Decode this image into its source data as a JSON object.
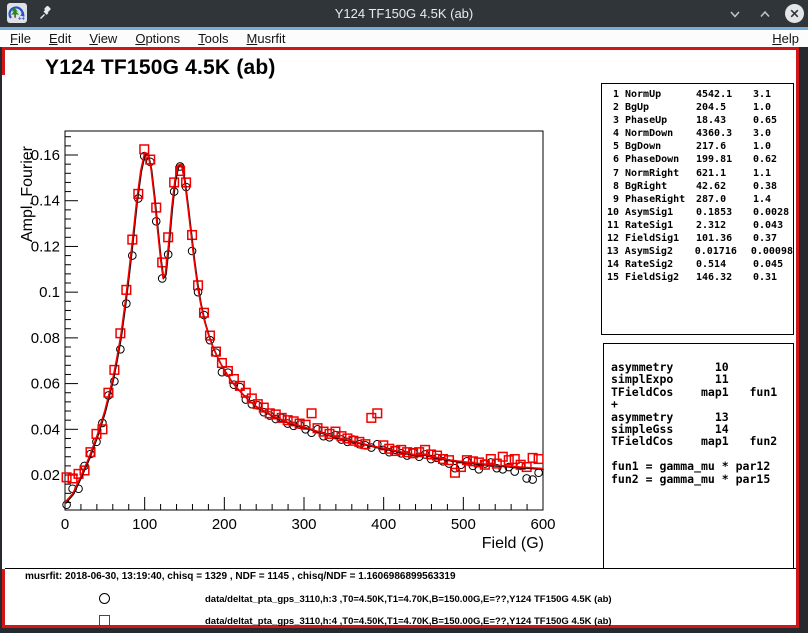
{
  "window": {
    "title": "Y124 TF150G 4.5K (ab)",
    "buttons": {
      "minimize": "v",
      "maximize": "^",
      "close": "x"
    }
  },
  "menu": {
    "items": [
      "File",
      "Edit",
      "View",
      "Options",
      "Tools",
      "Musrfit"
    ],
    "right_items": [
      "Help"
    ]
  },
  "plot": {
    "title": "Y124 TF150G 4.5K (ab)"
  },
  "param_table": {
    "rows": [
      {
        "num": "1",
        "name": "NormUp",
        "value": "4542.1",
        "error": "3.1"
      },
      {
        "num": "2",
        "name": "BgUp",
        "value": "204.5",
        "error": "1.0"
      },
      {
        "num": "3",
        "name": "PhaseUp",
        "value": "18.43",
        "error": "0.65"
      },
      {
        "num": "4",
        "name": "NormDown",
        "value": "4360.3",
        "error": "3.0"
      },
      {
        "num": "5",
        "name": "BgDown",
        "value": "217.6",
        "error": "1.0"
      },
      {
        "num": "6",
        "name": "PhaseDown",
        "value": "199.81",
        "error": "0.62"
      },
      {
        "num": "7",
        "name": "NormRight",
        "value": "621.1",
        "error": "1.1"
      },
      {
        "num": "8",
        "name": "BgRight",
        "value": "42.62",
        "error": "0.38"
      },
      {
        "num": "9",
        "name": "PhaseRight",
        "value": "287.0",
        "error": "1.4"
      },
      {
        "num": "10",
        "name": "AsymSig1",
        "value": "0.1853",
        "error": "0.0028"
      },
      {
        "num": "11",
        "name": "RateSig1",
        "value": "2.312",
        "error": "0.043"
      },
      {
        "num": "12",
        "name": "FieldSig1",
        "value": "101.36",
        "error": "0.37"
      },
      {
        "num": "13",
        "name": "AsymSig2",
        "value": "0.01716",
        "error": "0.00098"
      },
      {
        "num": "14",
        "name": "RateSig2",
        "value": "0.514",
        "error": "0.045"
      },
      {
        "num": "15",
        "name": "FieldSig2",
        "value": "146.32",
        "error": "0.31"
      }
    ]
  },
  "theory": {
    "lines": [
      "asymmetry      10",
      "simplExpo      11",
      "TFieldCos    map1   fun1",
      "+",
      "asymmetry      13",
      "simpleGss      14",
      "TFieldCos    map1   fun2",
      "",
      "fun1 = gamma_mu * par12",
      "fun2 = gamma_mu * par15"
    ]
  },
  "footer": {
    "status": "musrfit: 2018-06-30, 13:19:40, chisq = 1329 , NDF = 1145 , chisq/NDF = 1.1606986899563319",
    "legend": [
      {
        "marker": "circle",
        "color": "#000000",
        "label": "data/deltat_pta_gps_3110,h:3 ,T0=4.50K,T1=4.70K,B=150.00G,E=??,Y124 TF150G 4.5K (ab)"
      },
      {
        "marker": "square",
        "color": "#f20000",
        "label": "data/deltat_pta_gps_3110,h:4 ,T0=4.50K,T1=4.70K,B=150.00G,E=??,Y124 TF150G 4.5K (ab)"
      }
    ]
  },
  "colors": {
    "accent_red": "#f20000",
    "marker_black": "#000000",
    "canvas_border": "#d01616",
    "titlebar_bg": "#30353a",
    "focus_line": "#74add9"
  },
  "chart_data": {
    "type": "scatter",
    "title": "Y124 TF150G 4.5K (ab)",
    "xlabel": "Field (G)",
    "ylabel": "Ampl. Fourier",
    "xlim": [
      0,
      600
    ],
    "ylim": [
      0.0047,
      0.1705
    ],
    "x_major_ticks": [
      0,
      100,
      200,
      300,
      400,
      500,
      600
    ],
    "x_tick_labels": [
      "0",
      "100",
      "200",
      "300",
      "400",
      "500",
      "600"
    ],
    "x_minor_step": 20,
    "y_major_ticks": [
      0.02,
      0.04,
      0.06,
      0.08,
      0.1,
      0.12,
      0.14,
      0.16
    ],
    "y_tick_labels": [
      "0.02",
      "0.04",
      "0.06",
      "0.08",
      "0.1",
      "0.12",
      "0.14",
      "0.16"
    ],
    "y_minor_step": 0.004,
    "grid": false,
    "legend_position": "bottom-pad",
    "series": [
      {
        "name": "data h:3",
        "kind": "marker",
        "marker": "circle",
        "color": "#000000",
        "points": [
          [
            2,
            0.007
          ],
          [
            9.5,
            0.014
          ],
          [
            17,
            0.014
          ],
          [
            24.5,
            0.024
          ],
          [
            32,
            0.0292
          ],
          [
            39.5,
            0.0345
          ],
          [
            47,
            0.0428
          ],
          [
            54.5,
            0.0548
          ],
          [
            62,
            0.061
          ],
          [
            69.5,
            0.075
          ],
          [
            77,
            0.095
          ],
          [
            84.5,
            0.116
          ],
          [
            92,
            0.141
          ],
          [
            99.5,
            0.1595
          ],
          [
            107,
            0.157
          ],
          [
            114.5,
            0.131
          ],
          [
            122,
            0.106
          ],
          [
            129.5,
            0.1165
          ],
          [
            137,
            0.144
          ],
          [
            144.5,
            0.155
          ],
          [
            152,
            0.146
          ],
          [
            159.5,
            0.118
          ],
          [
            167,
            0.1
          ],
          [
            174.5,
            0.09
          ],
          [
            182,
            0.079
          ],
          [
            189.5,
            0.0735
          ],
          [
            197,
            0.065
          ],
          [
            204.5,
            0.0648
          ],
          [
            212,
            0.0595
          ],
          [
            219.5,
            0.0585
          ],
          [
            227,
            0.053
          ],
          [
            234.5,
            0.051
          ],
          [
            242,
            0.0505
          ],
          [
            249.5,
            0.0475
          ],
          [
            257,
            0.046
          ],
          [
            264.5,
            0.0445
          ],
          [
            272,
            0.045
          ],
          [
            279.5,
            0.0425
          ],
          [
            287,
            0.0415
          ],
          [
            294.5,
            0.042
          ],
          [
            302,
            0.04
          ],
          [
            309.5,
            0.0385
          ],
          [
            317,
            0.04
          ],
          [
            324.5,
            0.037
          ],
          [
            332,
            0.0365
          ],
          [
            339.5,
            0.0375
          ],
          [
            347,
            0.0355
          ],
          [
            354.5,
            0.0345
          ],
          [
            362,
            0.0355
          ],
          [
            369.5,
            0.0335
          ],
          [
            377,
            0.033
          ],
          [
            384.5,
            0.032
          ],
          [
            392,
            0.0335
          ],
          [
            399.5,
            0.031
          ],
          [
            407,
            0.03
          ],
          [
            414.5,
            0.031
          ],
          [
            422,
            0.0295
          ],
          [
            429.5,
            0.0285
          ],
          [
            437,
            0.03
          ],
          [
            444.5,
            0.028
          ],
          [
            452,
            0.029
          ],
          [
            459.5,
            0.027
          ],
          [
            467,
            0.0275
          ],
          [
            474.5,
            0.026
          ],
          [
            482,
            0.025
          ],
          [
            489.5,
            0.023
          ],
          [
            497,
            0.0245
          ],
          [
            504.5,
            0.026
          ],
          [
            512,
            0.024
          ],
          [
            519.5,
            0.0225
          ],
          [
            527,
            0.025
          ],
          [
            534.5,
            0.0255
          ],
          [
            542,
            0.023
          ],
          [
            549.5,
            0.0225
          ],
          [
            557,
            0.0235
          ],
          [
            564.5,
            0.0215
          ],
          [
            572,
            0.024
          ],
          [
            579.5,
            0.0185
          ],
          [
            587,
            0.018
          ],
          [
            594.5,
            0.021
          ]
        ]
      },
      {
        "name": "data h:4",
        "kind": "marker",
        "marker": "square",
        "color": "#f20000",
        "points": [
          [
            2,
            0.019
          ],
          [
            9.5,
            0.0185
          ],
          [
            17,
            0.0205
          ],
          [
            24.5,
            0.022
          ],
          [
            32,
            0.03
          ],
          [
            39.5,
            0.038
          ],
          [
            47,
            0.04
          ],
          [
            54.5,
            0.056
          ],
          [
            62,
            0.066
          ],
          [
            69.5,
            0.082
          ],
          [
            77,
            0.101
          ],
          [
            84.5,
            0.123
          ],
          [
            92,
            0.143
          ],
          [
            99.5,
            0.1625
          ],
          [
            107,
            0.158
          ],
          [
            114.5,
            0.137
          ],
          [
            122,
            0.113
          ],
          [
            129.5,
            0.124
          ],
          [
            137,
            0.148
          ],
          [
            144.5,
            0.153
          ],
          [
            152,
            0.148
          ],
          [
            159.5,
            0.125
          ],
          [
            167,
            0.103
          ],
          [
            174.5,
            0.091
          ],
          [
            182,
            0.081
          ],
          [
            189.5,
            0.074
          ],
          [
            197,
            0.069
          ],
          [
            204.5,
            0.0655
          ],
          [
            212,
            0.062
          ],
          [
            219.5,
            0.059
          ],
          [
            227,
            0.056
          ],
          [
            234.5,
            0.0535
          ],
          [
            242,
            0.051
          ],
          [
            249.5,
            0.0495
          ],
          [
            257,
            0.047
          ],
          [
            264.5,
            0.0465
          ],
          [
            272,
            0.045
          ],
          [
            279.5,
            0.044
          ],
          [
            287,
            0.0435
          ],
          [
            294.5,
            0.0425
          ],
          [
            302,
            0.042
          ],
          [
            309.5,
            0.047
          ],
          [
            317,
            0.0405
          ],
          [
            324.5,
            0.039
          ],
          [
            332,
            0.038
          ],
          [
            339.5,
            0.039
          ],
          [
            347,
            0.037
          ],
          [
            354.5,
            0.036
          ],
          [
            362,
            0.035
          ],
          [
            369.5,
            0.0345
          ],
          [
            377,
            0.0335
          ],
          [
            384.5,
            0.045
          ],
          [
            392,
            0.047
          ],
          [
            399.5,
            0.033
          ],
          [
            407,
            0.0315
          ],
          [
            414.5,
            0.0305
          ],
          [
            422,
            0.031
          ],
          [
            429.5,
            0.03
          ],
          [
            437,
            0.0295
          ],
          [
            444.5,
            0.03
          ],
          [
            452,
            0.031
          ],
          [
            459.5,
            0.029
          ],
          [
            467,
            0.0285
          ],
          [
            474.5,
            0.027
          ],
          [
            482,
            0.0265
          ],
          [
            489.5,
            0.021
          ],
          [
            497,
            0.0235
          ],
          [
            504.5,
            0.0265
          ],
          [
            512,
            0.026
          ],
          [
            519.5,
            0.0255
          ],
          [
            527,
            0.0245
          ],
          [
            534.5,
            0.027
          ],
          [
            542,
            0.025
          ],
          [
            549.5,
            0.028
          ],
          [
            557,
            0.0265
          ],
          [
            564.5,
            0.027
          ],
          [
            572,
            0.0245
          ],
          [
            579.5,
            0.0235
          ],
          [
            587,
            0.0275
          ],
          [
            594.5,
            0.027
          ]
        ]
      },
      {
        "name": "fit",
        "kind": "line",
        "color": "#f20000",
        "shadow_color": "#000000",
        "points": [
          [
            0,
            0.008
          ],
          [
            10,
            0.012
          ],
          [
            20,
            0.0195
          ],
          [
            30,
            0.0275
          ],
          [
            40,
            0.037
          ],
          [
            50,
            0.048
          ],
          [
            60,
            0.062
          ],
          [
            65,
            0.071
          ],
          [
            70,
            0.081
          ],
          [
            75,
            0.094
          ],
          [
            80,
            0.108
          ],
          [
            85,
            0.1235
          ],
          [
            90,
            0.14
          ],
          [
            95,
            0.153
          ],
          [
            100,
            0.161
          ],
          [
            104,
            0.1605
          ],
          [
            108,
            0.154
          ],
          [
            112,
            0.142
          ],
          [
            116,
            0.128
          ],
          [
            120,
            0.1145
          ],
          [
            123,
            0.1065
          ],
          [
            126,
            0.108
          ],
          [
            130,
            0.121
          ],
          [
            134,
            0.137
          ],
          [
            138,
            0.149
          ],
          [
            142,
            0.1555
          ],
          [
            146,
            0.156
          ],
          [
            150,
            0.149
          ],
          [
            154,
            0.138
          ],
          [
            158,
            0.126
          ],
          [
            162,
            0.114
          ],
          [
            166,
            0.104
          ],
          [
            170,
            0.0955
          ],
          [
            175,
            0.0875
          ],
          [
            180,
            0.0815
          ],
          [
            185,
            0.0765
          ],
          [
            190,
            0.0725
          ],
          [
            195,
            0.069
          ],
          [
            200,
            0.066
          ],
          [
            210,
            0.0605
          ],
          [
            220,
            0.0565
          ],
          [
            230,
            0.053
          ],
          [
            240,
            0.05
          ],
          [
            250,
            0.048
          ],
          [
            260,
            0.046
          ],
          [
            270,
            0.0445
          ],
          [
            280,
            0.043
          ],
          [
            290,
            0.042
          ],
          [
            300,
            0.041
          ],
          [
            320,
            0.0388
          ],
          [
            340,
            0.0366
          ],
          [
            360,
            0.0349
          ],
          [
            380,
            0.0332
          ],
          [
            400,
            0.0317
          ],
          [
            420,
            0.0302
          ],
          [
            440,
            0.0288
          ],
          [
            450,
            0.0291
          ],
          [
            460,
            0.0281
          ],
          [
            480,
            0.0267
          ],
          [
            500,
            0.0258
          ],
          [
            520,
            0.025
          ],
          [
            540,
            0.0243
          ],
          [
            560,
            0.0238
          ],
          [
            580,
            0.0233
          ],
          [
            600,
            0.0228
          ]
        ]
      }
    ]
  }
}
